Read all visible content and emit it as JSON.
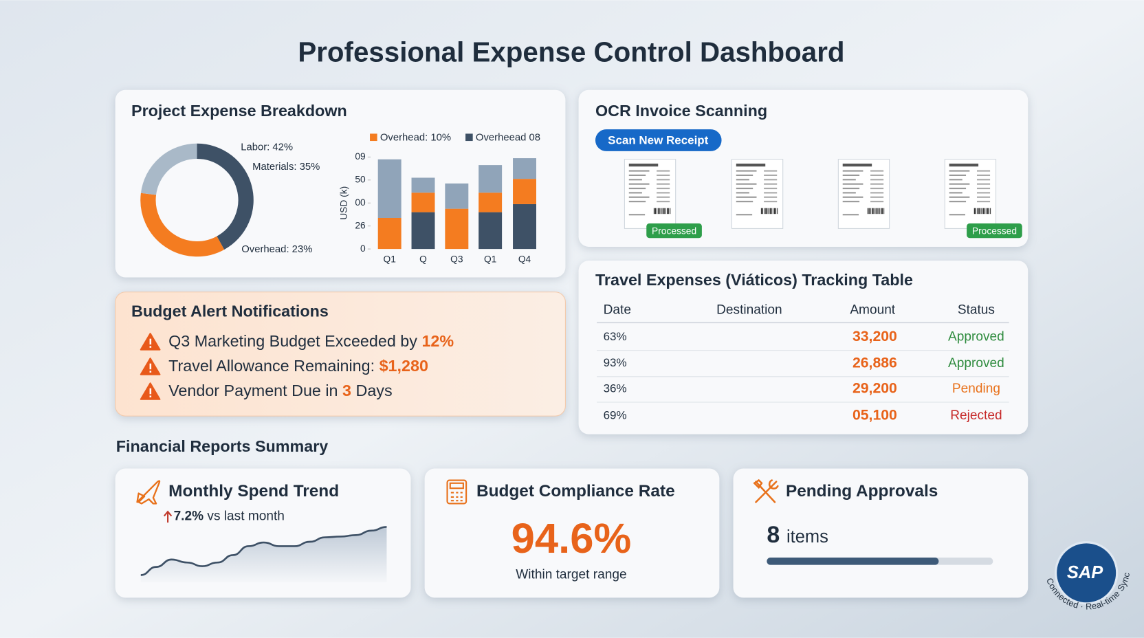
{
  "title": "Professional Expense Control Dashboard",
  "expense_breakdown": {
    "title": "Project Expense Breakdown",
    "donut": {
      "type": "pie",
      "categories": [
        "Labor",
        "Materials",
        "Overhead"
      ],
      "values": [
        42,
        35,
        23
      ],
      "value_labels": [
        "Labor: 42%",
        "Materials: 35%",
        "Overhead: 23%"
      ],
      "colors": [
        "#3e5166",
        "#f47c20",
        "#a9b9c8"
      ]
    },
    "bars": {
      "type": "bar",
      "stacked": true,
      "ylabel": "USD (k)",
      "categories": [
        "Q1",
        "Q",
        "Q3",
        "Q1",
        "Q4"
      ],
      "ylim": [
        0,
        80
      ],
      "yticks": [
        0,
        {
          "value": 20,
          "label": "26"
        },
        {
          "value": 40,
          "label": "00"
        },
        {
          "value": 60,
          "label": "50"
        },
        {
          "value": 80,
          "label": "09"
        }
      ],
      "series": [
        {
          "name": "Overheead 08",
          "color": "#3e5166",
          "values": [
            0,
            32,
            0,
            32,
            39
          ]
        },
        {
          "name": "Overhead: 10%",
          "color": "#f47c20",
          "values": [
            27,
            17,
            35,
            17,
            22
          ]
        },
        {
          "color": "#90a4b9",
          "values": [
            51,
            13,
            22,
            24,
            18
          ]
        }
      ]
    }
  },
  "ocr": {
    "title": "OCR Invoice Scanning",
    "button": "Scan New Receipt",
    "receipts": [
      "Processed",
      null,
      null,
      "Processed"
    ]
  },
  "travel": {
    "title": "Travel Expenses (Viáticos) Tracking Table",
    "columns": [
      "Date",
      "Destination",
      "Amount",
      "Status"
    ],
    "rows": [
      {
        "date": "63%",
        "amount": "33,200",
        "status": "Approved",
        "status_color": "#2e8b3e"
      },
      {
        "date": "93%",
        "amount": "26,886",
        "status": "Approved",
        "status_color": "#2e8b3e"
      },
      {
        "date": "36%",
        "amount": "29,200",
        "status": "Pending",
        "status_color": "#e8711a"
      },
      {
        "date": "69%",
        "amount": "05,100",
        "status": "Rejected",
        "status_color": "#c62828"
      }
    ]
  },
  "alerts": {
    "title": "Budget Alert Notifications",
    "items": [
      {
        "text": "Q3 Marketing Budget Exceeded by ",
        "highlight": "12%"
      },
      {
        "text": "Travel Allowance Remaining: ",
        "highlight": "$1,280"
      },
      {
        "text": "Vendor Payment Due in ",
        "highlight": "3",
        "after": " Days"
      }
    ]
  },
  "reports": {
    "title": "Financial Reports Summary",
    "monthly": {
      "title": "Monthly Spend Trend",
      "change": "7.2%",
      "change_text": " vs last month",
      "trend": {
        "type": "line",
        "values": [
          13,
          24,
          34,
          30,
          25,
          30,
          40,
          52,
          57,
          52,
          52,
          58,
          64,
          65,
          67,
          73,
          78
        ]
      }
    },
    "compliance": {
      "title": "Budget Compliance Rate",
      "value": "94.6%",
      "caption": "Within target range"
    },
    "pending": {
      "title": "Pending Approvals",
      "count": 8,
      "unit": "items",
      "progress": 76
    }
  },
  "sap": {
    "logo": "SAP",
    "status": "Connected · Real-time Sync"
  }
}
